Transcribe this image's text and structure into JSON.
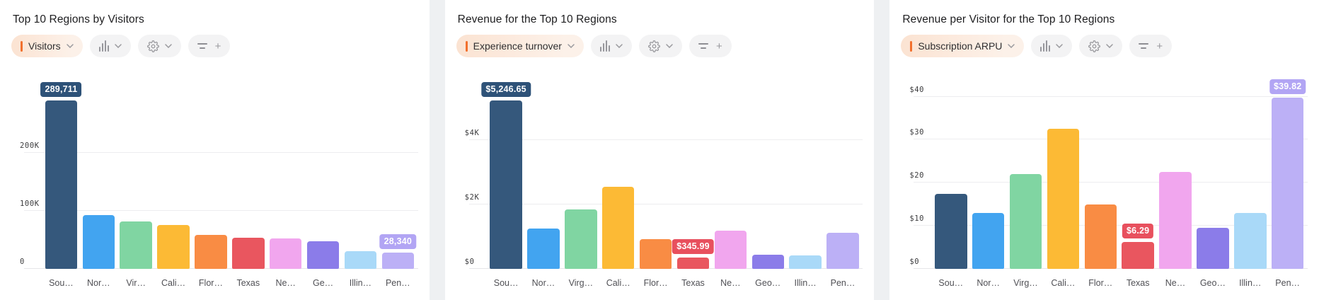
{
  "controls": {
    "plus_label": "+",
    "icons": [
      "chevron-down-icon",
      "bar-chart-icon",
      "gear-icon",
      "filter-icon",
      "plus-icon"
    ]
  },
  "colors": {
    "bars": [
      "#35587c",
      "#42a4f0",
      "#80d5a2",
      "#fcba35",
      "#f98c44",
      "#e9565f",
      "#f1a6ee",
      "#8b7ce9",
      "#a9d9f8",
      "#bcb0f6"
    ],
    "accent_orange": "#f2702d",
    "grid": "#ededef",
    "badge_navy": "#2e5278",
    "badge_red": "#e8505e",
    "badge_lavender": "#b2a5f4"
  },
  "chart_data": [
    {
      "type": "bar",
      "title": "Top 10 Regions by Visitors",
      "metric_label": "Visitors",
      "categories": [
        "Sou…",
        "Nor…",
        "Vir…",
        "Cali…",
        "Flor…",
        "Texas",
        "Ne…",
        "Ge…",
        "Illin…",
        "Pen…"
      ],
      "values": [
        289711,
        92000,
        82000,
        76000,
        59000,
        54000,
        52000,
        48000,
        31000,
        28340
      ],
      "y_ticks": [
        {
          "value": 0,
          "label": "0"
        },
        {
          "value": 100000,
          "label": "100K"
        },
        {
          "value": 200000,
          "label": "200K"
        }
      ],
      "render_max": 348000,
      "ylim": [
        0,
        348000
      ],
      "legend": "none",
      "grid": true,
      "badges": [
        {
          "index": 0,
          "text": "289,711",
          "color": "#2e5278"
        },
        {
          "index": 9,
          "text": "28,340",
          "color": "#b2a5f4"
        }
      ]
    },
    {
      "type": "bar",
      "title": "Revenue for the Top 10 Regions",
      "metric_label": "Experience turnover",
      "categories": [
        "Sou…",
        "Nor…",
        "Virg…",
        "Cali…",
        "Flor…",
        "Texas",
        "Ne…",
        "Geo…",
        "Illin…",
        "Pen…"
      ],
      "values": [
        5246.65,
        1250,
        1850,
        2550,
        930,
        345.99,
        1200,
        450,
        420,
        1130
      ],
      "y_ticks": [
        {
          "value": 0,
          "label": "$0"
        },
        {
          "value": 2000,
          "label": "$2K"
        },
        {
          "value": 4000,
          "label": "$4K"
        }
      ],
      "render_max": 6300,
      "ylim": [
        0,
        6300
      ],
      "legend": "none",
      "grid": true,
      "badges": [
        {
          "index": 0,
          "text": "$5,246.65",
          "color": "#2e5278"
        },
        {
          "index": 5,
          "text": "$345.99",
          "color": "#e8505e"
        }
      ]
    },
    {
      "type": "bar",
      "title": "Revenue per Visitor for the Top 10 Regions",
      "metric_label": "Subscription ARPU",
      "categories": [
        "Sou…",
        "Nor…",
        "Virg…",
        "Cali…",
        "Flor…",
        "Texas",
        "Ne…",
        "Geo…",
        "Illin…",
        "Pen…"
      ],
      "values": [
        17.5,
        13,
        22,
        32.5,
        15,
        6.29,
        22.5,
        9.5,
        13,
        39.82
      ],
      "y_ticks": [
        {
          "value": 0,
          "label": "$0"
        },
        {
          "value": 10,
          "label": "$10"
        },
        {
          "value": 20,
          "label": "$20"
        },
        {
          "value": 30,
          "label": "$30"
        },
        {
          "value": 40,
          "label": "$40"
        }
      ],
      "render_max": 47,
      "ylim": [
        0,
        47
      ],
      "legend": "none",
      "grid": true,
      "badges": [
        {
          "index": 5,
          "text": "$6.29",
          "color": "#e8505e"
        },
        {
          "index": 9,
          "text": "$39.82",
          "color": "#b2a5f4"
        }
      ]
    }
  ]
}
